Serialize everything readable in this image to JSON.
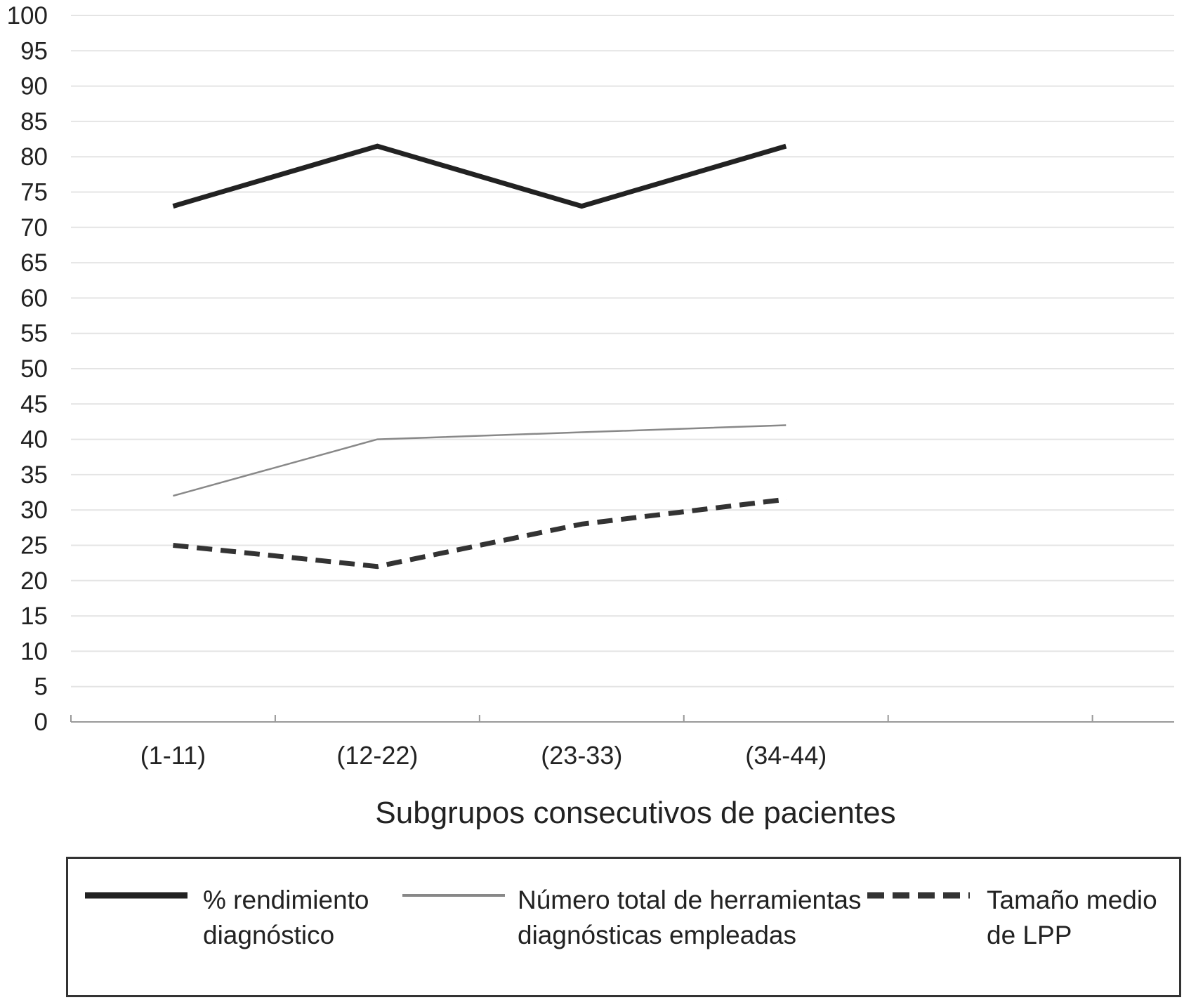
{
  "chart_data": {
    "type": "line",
    "categories": [
      "(1-11)",
      "(12-22)",
      "(23-33)",
      "(34-44)"
    ],
    "xlabel": "Subgrupos consecutivos de pacientes",
    "ylabel": "",
    "ylim": [
      0,
      100
    ],
    "yticks": [
      0,
      5,
      10,
      15,
      20,
      25,
      30,
      35,
      40,
      45,
      50,
      55,
      60,
      65,
      70,
      75,
      80,
      85,
      90,
      95,
      100
    ],
    "grid": true,
    "legend_position": "bottom",
    "series": [
      {
        "name": "% rendimiento diagnóstico",
        "values": [
          73,
          81.5,
          73,
          81.5
        ],
        "color": "#222222",
        "style": "solid-thick"
      },
      {
        "name": "Número total de herramientas diagnósticas empleadas",
        "values": [
          32,
          40,
          41,
          42
        ],
        "color": "#888888",
        "style": "solid-thin"
      },
      {
        "name": "Tamaño medio de LPP",
        "values": [
          25,
          22,
          28,
          31.5
        ],
        "color": "#333333",
        "style": "dashed-thick"
      }
    ]
  }
}
